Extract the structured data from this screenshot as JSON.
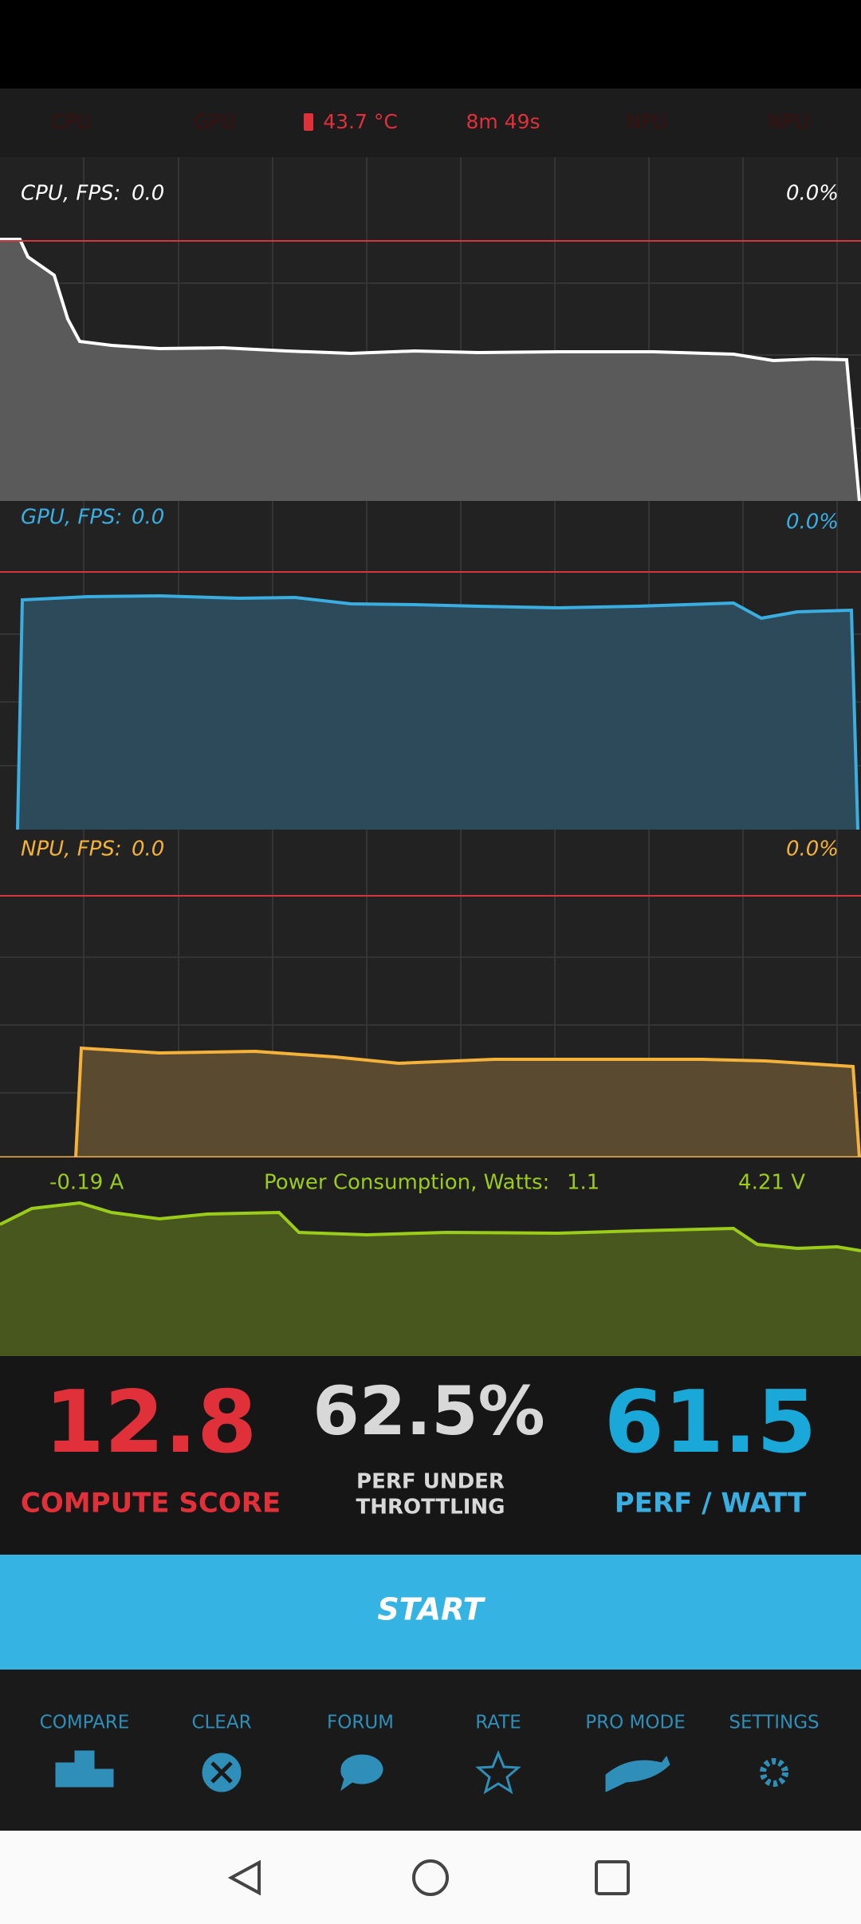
{
  "status_bar": {
    "items": [
      "CPU",
      "GPU",
      "43.7 °C",
      "8m 49s",
      "NPU",
      "NPU"
    ]
  },
  "graphs": [
    {
      "label": "CPU, FPS:",
      "fps": "0.0",
      "percent": "0.0%"
    },
    {
      "label": "GPU, FPS:",
      "fps": "0.0",
      "percent": "0.0%"
    },
    {
      "label": "NPU, FPS:",
      "fps": "0.0",
      "percent": "0.0%"
    }
  ],
  "power": {
    "current": "-0.19 A",
    "label": "Power Consumption, Watts:",
    "watts": "1.1",
    "voltage": "4.21 V"
  },
  "scores": [
    {
      "value": "12.8",
      "label": "COMPUTE SCORE"
    },
    {
      "value": "62.5%",
      "label": "PERF UNDER",
      "label2": "THROTTLING"
    },
    {
      "value": "61.5",
      "label": "PERF / WATT"
    }
  ],
  "start_button": "START",
  "nav_tabs": [
    "COMPARE",
    "CLEAR",
    "FORUM",
    "RATE",
    "PRO MODE",
    "SETTINGS"
  ]
}
